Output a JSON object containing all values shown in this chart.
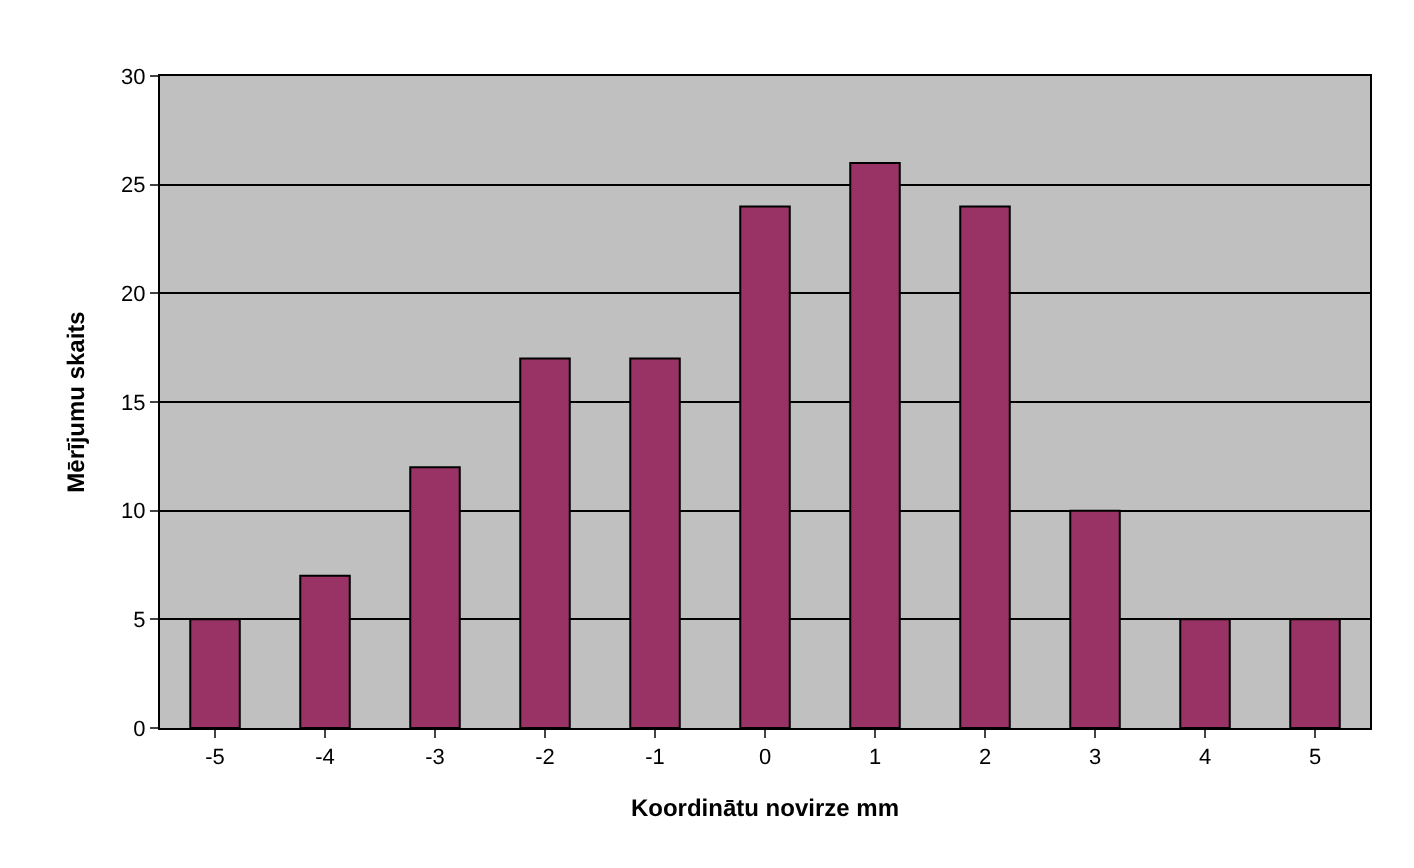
{
  "chart_data": {
    "type": "bar",
    "xlabel": "Koordinātu novirze mm",
    "ylabel": "Mērījumu skaits",
    "categories": [
      "-5",
      "-4",
      "-3",
      "-2",
      "-1",
      "0",
      "1",
      "2",
      "3",
      "4",
      "5"
    ],
    "values": [
      5,
      7,
      12,
      17,
      17,
      24,
      26,
      24,
      10,
      5,
      5
    ],
    "color": "#993366",
    "ylim": [
      0,
      30
    ],
    "yticks": [
      0,
      5,
      10,
      15,
      20,
      25,
      30
    ],
    "grid": "y",
    "legend": false
  }
}
